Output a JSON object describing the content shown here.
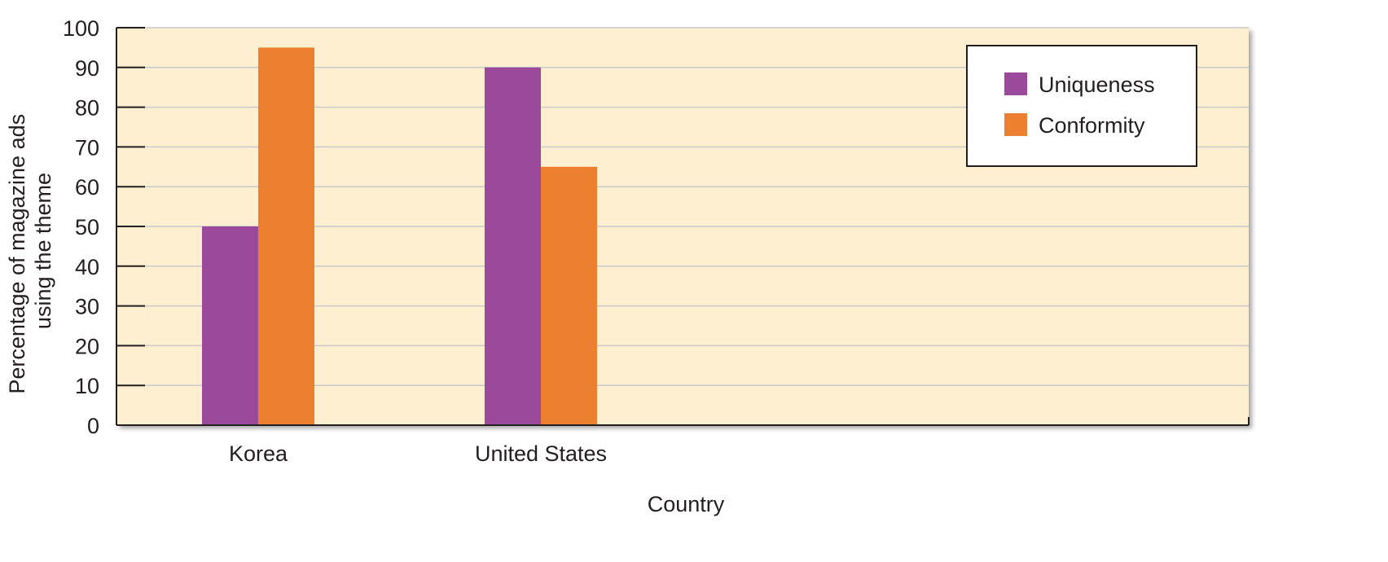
{
  "chart_data": {
    "type": "bar",
    "title": "",
    "xlabel": "Country",
    "ylabel_lines": [
      "Percentage of magazine ads",
      "using the theme"
    ],
    "categories": [
      "Korea",
      "United States"
    ],
    "series": [
      {
        "name": "Uniqueness",
        "color": "#9b4a9b",
        "values": [
          50,
          90
        ]
      },
      {
        "name": "Conformity",
        "color": "#ec8030",
        "values": [
          95,
          65
        ]
      }
    ],
    "ylim": [
      0,
      100
    ],
    "yticks": [
      0,
      10,
      20,
      30,
      40,
      50,
      60,
      70,
      80,
      90,
      100
    ],
    "grid": true,
    "legend_position": "top-right",
    "colors": {
      "plot_background": "#fdefd0",
      "gridline": "#c9c9c9",
      "axis": "#231f20"
    }
  }
}
